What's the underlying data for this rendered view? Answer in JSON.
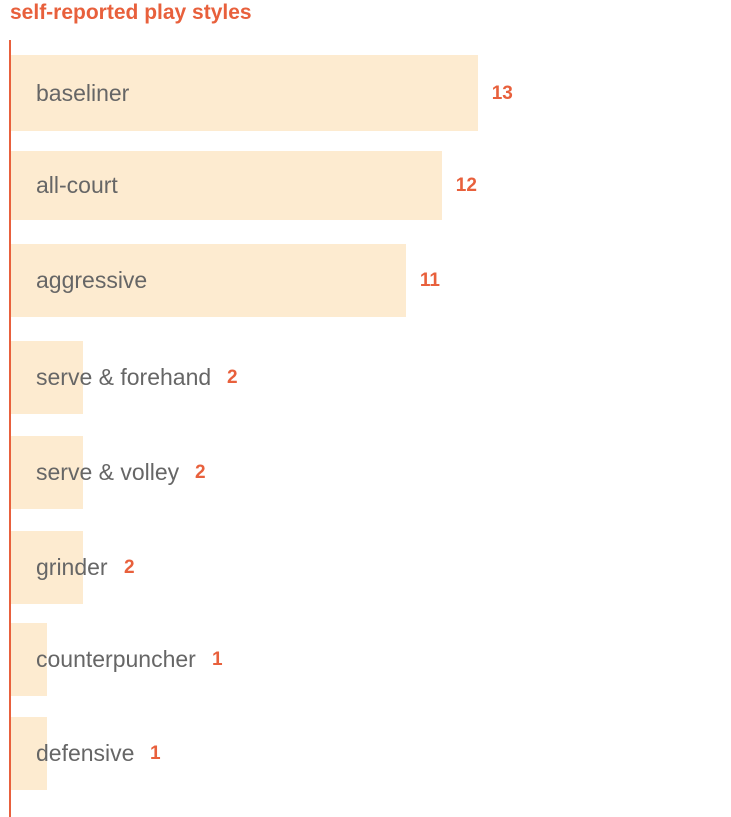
{
  "chart_data": {
    "type": "bar",
    "orientation": "horizontal",
    "title": "self-reported play styles",
    "categories": [
      "baseliner",
      "all-court",
      "aggressive",
      "serve & forehand",
      "serve & volley",
      "grinder",
      "counterpuncher",
      "defensive"
    ],
    "values": [
      13,
      12,
      11,
      2,
      2,
      2,
      1,
      1
    ],
    "xlim": [
      0,
      13
    ],
    "grid": false,
    "legend": "none",
    "colors": {
      "bar": "#fdebd0",
      "accent": "#e8603c",
      "label": "#666666"
    }
  }
}
